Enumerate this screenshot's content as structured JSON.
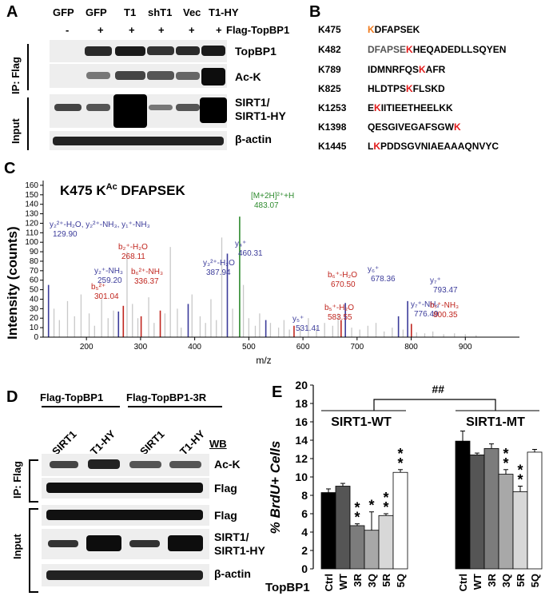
{
  "panel_a": {
    "label": "A",
    "lanes": [
      "GFP",
      "GFP",
      "T1",
      "shT1",
      "Vec",
      "T1-HY"
    ],
    "flag_row": [
      "-",
      "+",
      "+",
      "+",
      "+",
      "+"
    ],
    "flag_label": "Flag-TopBP1",
    "ip_label": "IP: Flag",
    "input_label": "Input",
    "blots": [
      "TopBP1",
      "Ac-K",
      "SIRT1/",
      "SIRT1-HY",
      "β-actin"
    ]
  },
  "panel_b": {
    "label": "B",
    "rows": [
      {
        "id": "K475",
        "pre": "",
        "k": "K",
        "post": "DFAPSEK",
        "kcolor": "orange"
      },
      {
        "id": "K482",
        "pre": "DFAPSE",
        "k": "K",
        "post": "HEQADEDLLSQYEN",
        "kcolor": "red"
      },
      {
        "id": "K789",
        "pre": "IDMNRFQS",
        "k": "K",
        "post": "AFR",
        "kcolor": "red"
      },
      {
        "id": "K825",
        "pre": "HLDTPS",
        "k": "K",
        "post": "FLSKD",
        "kcolor": "red"
      },
      {
        "id": "K1253",
        "pre": "E",
        "k": "K",
        "post": "IITIEETHEELKK",
        "kcolor": "red"
      },
      {
        "id": "K1398",
        "pre": "QESGIVEGAFSGW",
        "k": "K",
        "post": "",
        "kcolor": "red"
      },
      {
        "id": "K1445",
        "pre": "L",
        "k": "K",
        "post": "PDDSGVNIAEAAAQNVYC",
        "kcolor": "red"
      }
    ]
  },
  "panel_c": {
    "label": "C",
    "title_pre": "K475  K",
    "title_sup": "Ac",
    "title_post": " DFAPSEK",
    "ylabel": "Intensity (counts)",
    "xlabel": "m/z",
    "annotations": [
      {
        "label": "y₂²⁺-H₂O, y₂²⁺-NH₃, y₁⁺-NH₃",
        "value": "129.90",
        "color": "#3b3b9a"
      },
      {
        "label": "y₂⁺-NH₃",
        "value": "259.20",
        "color": "#3b3b9a"
      },
      {
        "label": "b₂⁺-H₂O",
        "value": "268.11",
        "color": "#c0251e"
      },
      {
        "label": "b₅²⁺",
        "value": "301.04",
        "color": "#c0251e"
      },
      {
        "label": "b₆²⁺-NH₃",
        "value": "336.37",
        "color": "#c0251e"
      },
      {
        "label": "y₃²⁺-H₂O",
        "value": "387.94",
        "color": "#3b3b9a"
      },
      {
        "label": "y₄⁺",
        "value": "460.31",
        "color": "#3b3b9a"
      },
      {
        "label": "[M+2H]²⁺+H",
        "value": "483.07",
        "color": "#2e8b2e"
      },
      {
        "label": "y₅⁺",
        "value": "531.41",
        "color": "#3b3b9a"
      },
      {
        "label": "b₅⁺-H₂O",
        "value": "583.55",
        "color": "#c0251e"
      },
      {
        "label": "b₆⁺-H₂O",
        "value": "670.50",
        "color": "#c0251e"
      },
      {
        "label": "y₆⁺",
        "value": "678.36",
        "color": "#3b3b9a"
      },
      {
        "label": "y₇⁺-NH₃",
        "value": "776.49",
        "color": "#3b3b9a"
      },
      {
        "label": "y₇⁺",
        "value": "793.47",
        "color": "#3b3b9a"
      },
      {
        "label": "b₇⁺-NH₃",
        "value": "800.35",
        "color": "#c0251e"
      }
    ]
  },
  "panel_d": {
    "label": "D",
    "group1": "Flag-TopBP1",
    "group2": "Flag-TopBP1-3R",
    "lanes": [
      "SIRT1",
      "T1-HY",
      "SIRT1",
      "T1-HY"
    ],
    "wb_label": "WB",
    "ip_label": "IP: Flag",
    "input_label": "Input",
    "blots": [
      "Ac-K",
      "Flag",
      "Flag",
      "SIRT1/",
      "SIRT1-HY",
      "β-actin"
    ]
  },
  "panel_e": {
    "label": "E",
    "ylabel": "% BrdU+ Cells",
    "xlabel_prefix": "TopBP1",
    "group1": "SIRT1-WT",
    "group2": "SIRT1-MT",
    "significance": "##"
  },
  "chart_data": [
    {
      "type": "bar",
      "title": "K475  KAc DFAPSEK",
      "xlabel": "m/z",
      "ylabel": "Intensity (counts)",
      "xlim": [
        120,
        1000
      ],
      "ylim": [
        0,
        165
      ],
      "x_ticks": [
        200,
        300,
        400,
        500,
        600,
        700,
        800,
        900
      ],
      "y_ticks": [
        0,
        10,
        20,
        30,
        40,
        50,
        60,
        70,
        80,
        90,
        100,
        110,
        120,
        130,
        140,
        150,
        160
      ],
      "series": [
        {
          "name": "y ions",
          "color": "#3b3b9a",
          "x": [
            129.9,
            259.2,
            387.94,
            460.31,
            531.41,
            678.36,
            776.49,
            793.47
          ],
          "values": [
            55,
            27,
            35,
            88,
            18,
            36,
            22,
            38
          ]
        },
        {
          "name": "b ions",
          "color": "#c0251e",
          "x": [
            268.11,
            301.04,
            336.37,
            583.55,
            670.5,
            800.35
          ],
          "values": [
            33,
            22,
            28,
            12,
            18,
            14
          ]
        },
        {
          "name": "precursor",
          "color": "#2e8b2e",
          "x": [
            483.07
          ],
          "values": [
            127
          ]
        },
        {
          "name": "unassigned",
          "color": "#c8c8c8",
          "x": [
            140,
            150,
            165,
            178,
            190,
            205,
            215,
            228,
            240,
            250,
            275,
            285,
            295,
            315,
            325,
            345,
            355,
            368,
            375,
            395,
            410,
            420,
            430,
            440,
            450,
            470,
            490,
            500,
            512,
            520,
            540,
            555,
            565,
            575,
            595,
            610,
            625,
            640,
            655,
            665,
            690,
            705,
            720,
            735,
            750,
            765,
            785,
            810,
            825,
            840,
            860,
            880,
            900,
            920
          ],
          "values": [
            30,
            18,
            38,
            22,
            45,
            25,
            12,
            40,
            20,
            28,
            90,
            35,
            20,
            42,
            15,
            25,
            95,
            30,
            10,
            45,
            22,
            15,
            40,
            18,
            105,
            30,
            55,
            20,
            12,
            25,
            15,
            10,
            18,
            8,
            12,
            20,
            10,
            15,
            12,
            25,
            10,
            8,
            12,
            15,
            6,
            10,
            8,
            5,
            4,
            6,
            3,
            4,
            3,
            2
          ]
        }
      ]
    },
    {
      "type": "bar",
      "ylabel": "% BrdU+ Cells",
      "xlabel": "TopBP1",
      "ylim": [
        0,
        20
      ],
      "y_ticks": [
        0,
        2,
        4,
        6,
        8,
        10,
        12,
        14,
        16,
        18,
        20
      ],
      "categories": [
        "Ctrl",
        "WT",
        "3R",
        "3Q",
        "5R",
        "5Q"
      ],
      "series": [
        {
          "name": "SIRT1-WT",
          "values": [
            8.3,
            9.0,
            4.7,
            4.2,
            5.8,
            10.5
          ],
          "errors": [
            0.4,
            0.3,
            0.2,
            2.0,
            0.2,
            0.3
          ],
          "stars": [
            "",
            "",
            "**",
            "*",
            "**",
            "**"
          ]
        },
        {
          "name": "SIRT1-MT",
          "values": [
            13.9,
            12.4,
            13.1,
            10.3,
            8.4,
            12.7
          ],
          "errors": [
            1.1,
            0.2,
            0.5,
            0.5,
            0.6,
            0.3
          ],
          "stars": [
            "",
            "",
            "",
            "**",
            "**",
            ""
          ]
        }
      ],
      "bar_colors": [
        "#000000",
        "#555555",
        "#7c7c7c",
        "#a8a8a8",
        "#d8d8d8",
        "#ffffff"
      ]
    }
  ]
}
